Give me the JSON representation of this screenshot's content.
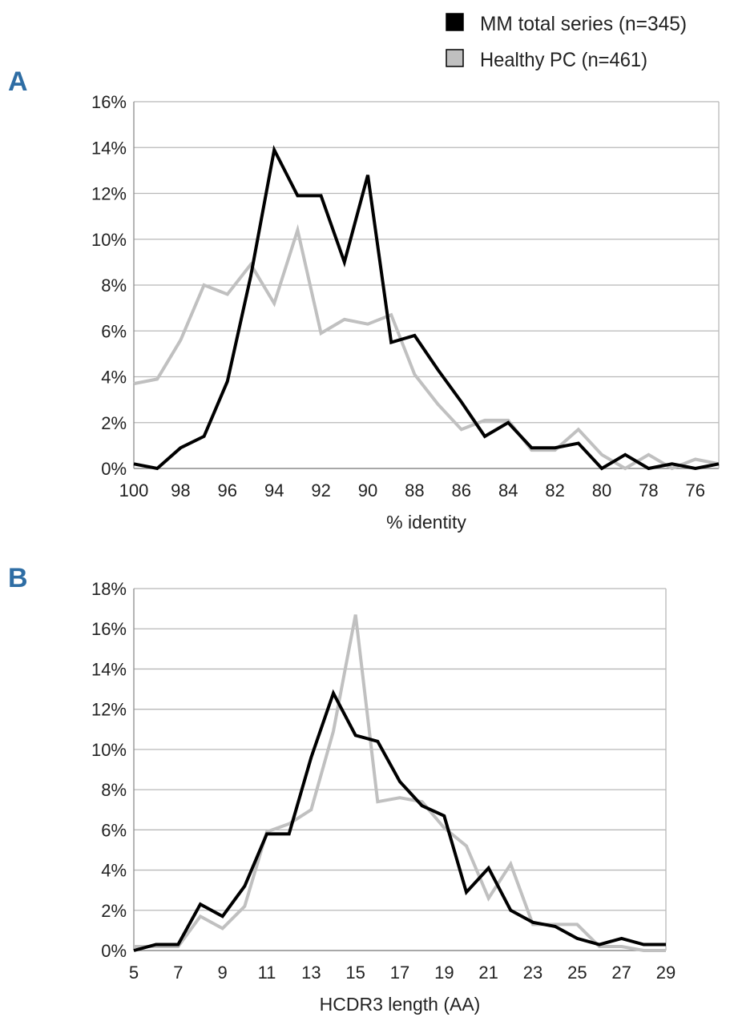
{
  "legend": {
    "series_mm": "MM total series (n=345)",
    "series_healthy": "Healthy PC (n=461)"
  },
  "colors": {
    "mm": "#000000",
    "healthy": "#c0c0c0",
    "grid": "#b8b8b8",
    "axis": "#8c8c8c",
    "panel_letter": "#2e6da4"
  },
  "chart_data": [
    {
      "panel": "A",
      "type": "line",
      "xlabel": "% identity",
      "ylabel": "",
      "x": [
        100,
        99,
        98,
        97,
        96,
        95,
        94,
        93,
        92,
        91,
        90,
        89,
        88,
        87,
        86,
        85,
        84,
        83,
        82,
        81,
        80,
        79,
        78,
        77,
        76,
        75
      ],
      "xlim": [
        100,
        75
      ],
      "xticks": [
        100,
        98,
        96,
        94,
        92,
        90,
        88,
        86,
        84,
        82,
        80,
        78,
        76
      ],
      "ylim": [
        0,
        16
      ],
      "yticks": [
        "0%",
        "2%",
        "4%",
        "6%",
        "8%",
        "10%",
        "12%",
        "14%",
        "16%"
      ],
      "series": [
        {
          "name": "Healthy PC (n=461)",
          "values": [
            3.7,
            3.9,
            5.6,
            8.0,
            7.6,
            8.9,
            7.2,
            10.4,
            5.9,
            6.5,
            6.3,
            6.7,
            4.1,
            2.8,
            1.7,
            2.1,
            2.1,
            0.8,
            0.8,
            1.7,
            0.6,
            0.0,
            0.6,
            0.0,
            0.4,
            0.2
          ]
        },
        {
          "name": "MM total series (n=345)",
          "values": [
            0.2,
            0.0,
            0.9,
            1.4,
            3.8,
            8.4,
            13.9,
            11.9,
            11.9,
            9.0,
            12.8,
            5.5,
            5.8,
            4.3,
            2.9,
            1.4,
            2.0,
            0.9,
            0.9,
            1.1,
            0.0,
            0.6,
            0.0,
            0.2,
            0.0,
            0.2
          ]
        }
      ]
    },
    {
      "panel": "B",
      "type": "line",
      "xlabel": "HCDR3 length (AA)",
      "ylabel": "",
      "x": [
        5,
        6,
        7,
        8,
        9,
        10,
        11,
        12,
        13,
        14,
        15,
        16,
        17,
        18,
        19,
        20,
        21,
        22,
        23,
        24,
        25,
        26,
        27,
        28,
        29
      ],
      "xlim": [
        5,
        29
      ],
      "xticks": [
        5,
        7,
        9,
        11,
        13,
        15,
        17,
        19,
        21,
        23,
        25,
        27,
        29
      ],
      "ylim": [
        0,
        18
      ],
      "yticks": [
        "0%",
        "2%",
        "4%",
        "6%",
        "8%",
        "10%",
        "12%",
        "14%",
        "16%",
        "18%"
      ],
      "series": [
        {
          "name": "Healthy PC (n=461)",
          "values": [
            0.2,
            0.2,
            0.2,
            1.7,
            1.1,
            2.2,
            5.9,
            6.3,
            7.0,
            10.9,
            16.7,
            7.4,
            7.6,
            7.4,
            6.1,
            5.2,
            2.6,
            4.3,
            1.3,
            1.3,
            1.3,
            0.2,
            0.2,
            0.0,
            0.0
          ]
        },
        {
          "name": "MM total series (n=345)",
          "values": [
            0.0,
            0.3,
            0.3,
            2.3,
            1.7,
            3.2,
            5.8,
            5.8,
            9.6,
            12.8,
            10.7,
            10.4,
            8.4,
            7.2,
            6.7,
            2.9,
            4.1,
            2.0,
            1.4,
            1.2,
            0.6,
            0.3,
            0.6,
            0.3,
            0.3
          ]
        }
      ]
    }
  ],
  "panels": {
    "a_label": "A",
    "b_label": "B"
  }
}
